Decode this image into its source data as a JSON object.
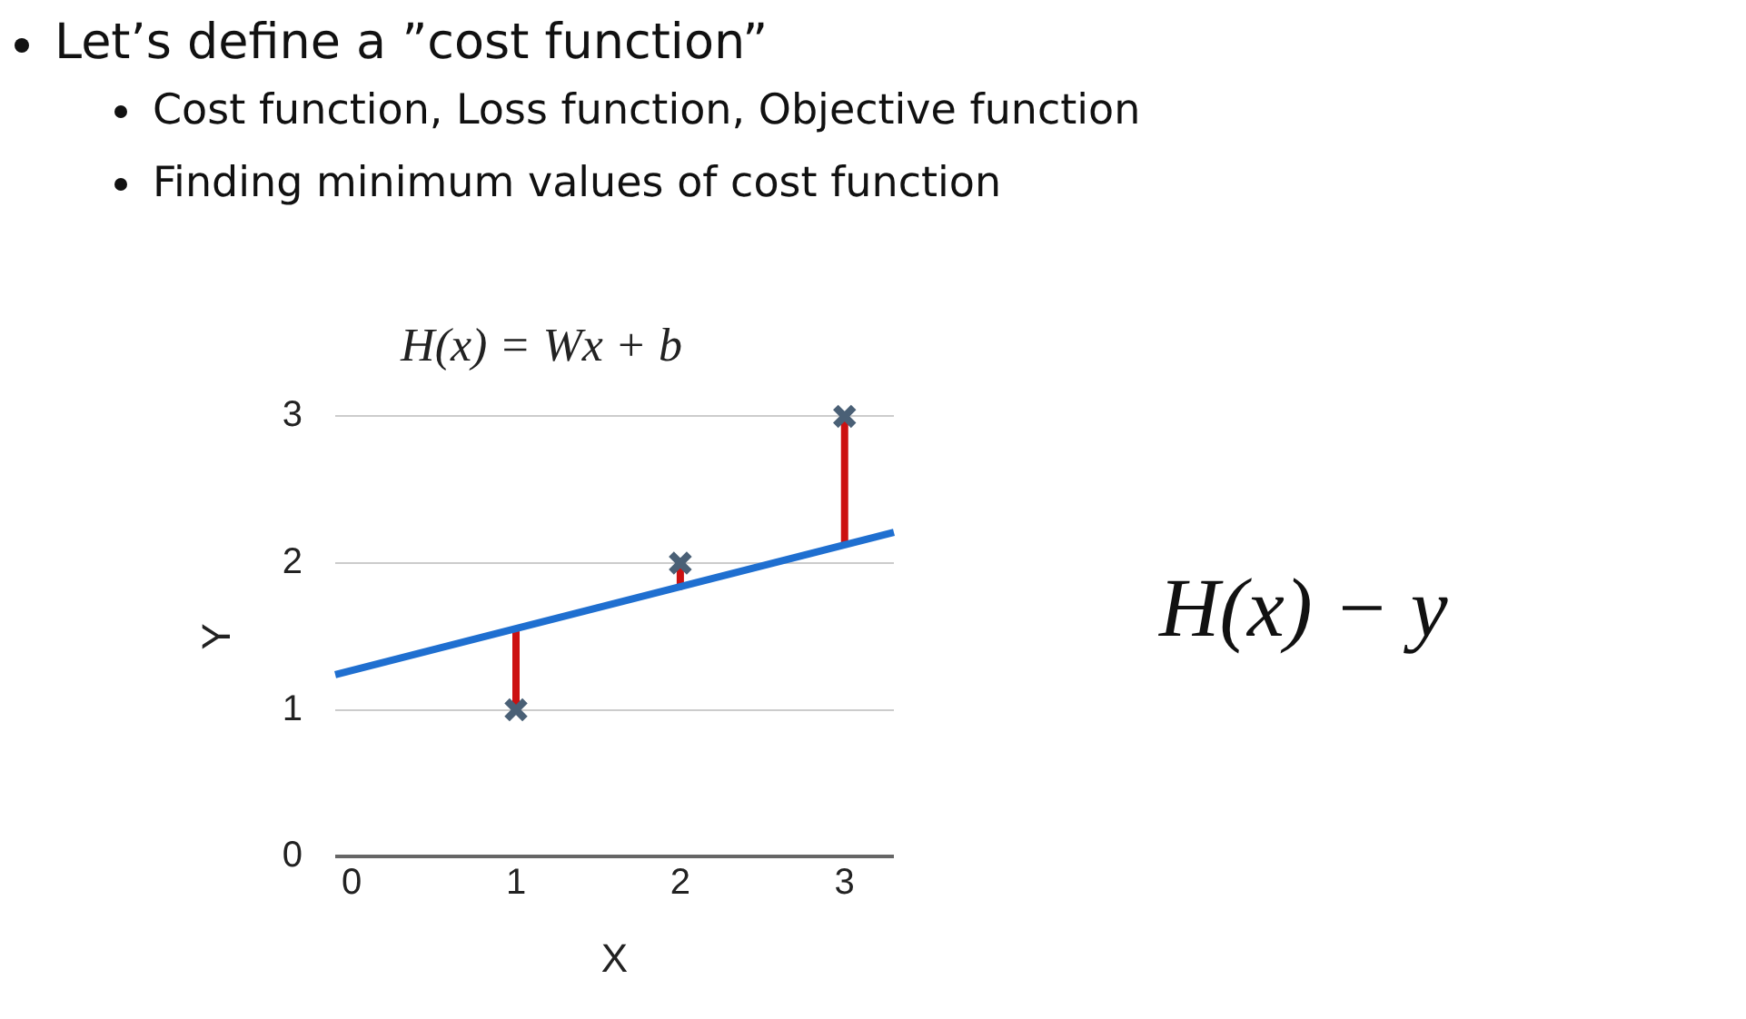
{
  "chart_data": {
    "type": "scatter",
    "title": "H(x) = Wx + b",
    "xlabel": "X",
    "ylabel": "Y",
    "annotations": [
      "Let’s define a ”cost function”",
      "Cost function, Loss function, Objective function",
      "Finding minimum values of cost function",
      "H(x) − y"
    ],
    "xlim": [
      -0.1,
      3.3
    ],
    "xticks": [
      0,
      1,
      2,
      3
    ],
    "ylim": [
      0,
      3
    ],
    "yticks": [
      0,
      1,
      2,
      3
    ],
    "grid": "y",
    "series": [
      {
        "color": "#4a6076",
        "marker": "cross",
        "x": [
          1,
          2,
          3
        ],
        "values": [
          1,
          2,
          3
        ]
      },
      {
        "type": "line",
        "color": "#1f6fd0",
        "marker": "none",
        "x": [
          -0.1,
          3.3
        ],
        "values": [
          1.24,
          2.21
        ]
      },
      {
        "type": "line",
        "color": "#cc1111",
        "marker": "none",
        "x": [
          1,
          1
        ],
        "values": [
          1,
          1.55
        ]
      },
      {
        "type": "line",
        "color": "#cc1111",
        "marker": "none",
        "x": [
          2,
          2
        ],
        "values": [
          2,
          1.84
        ]
      },
      {
        "type": "line",
        "color": "#cc1111",
        "marker": "none",
        "x": [
          3,
          3
        ],
        "values": [
          3,
          2.13
        ]
      }
    ]
  }
}
